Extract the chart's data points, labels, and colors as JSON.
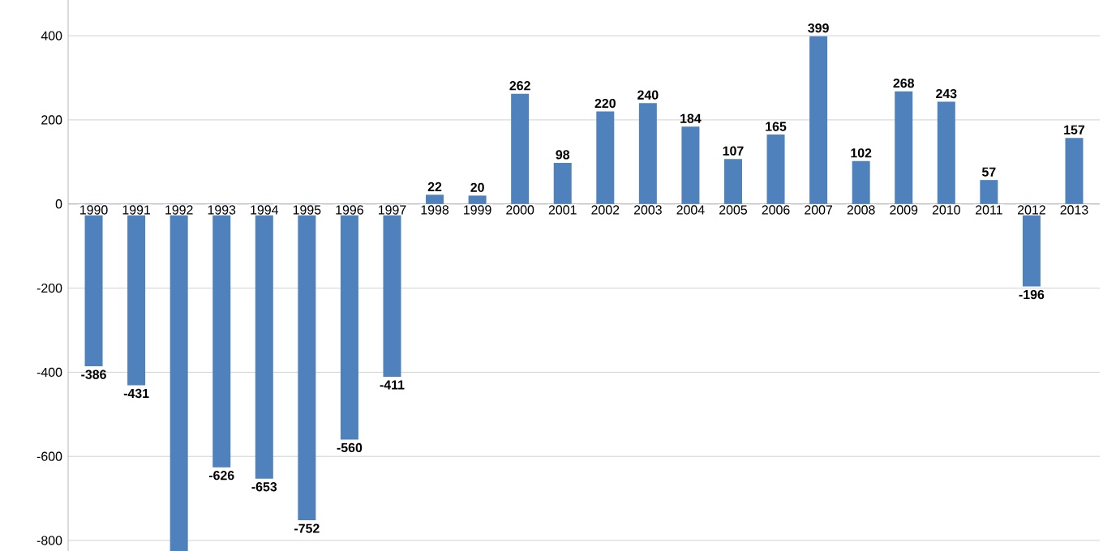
{
  "chart_data": {
    "type": "bar",
    "categories": [
      "1990",
      "1991",
      "1992",
      "1993",
      "1994",
      "1995",
      "1996",
      "1997",
      "1998",
      "1999",
      "2000",
      "2001",
      "2002",
      "2003",
      "2004",
      "2005",
      "2006",
      "2007",
      "2008",
      "2009",
      "2010",
      "2011",
      "2012",
      "2013"
    ],
    "values": [
      -386,
      -431,
      -825,
      -626,
      -653,
      -752,
      -560,
      -411,
      22,
      20,
      262,
      98,
      220,
      240,
      184,
      107,
      165,
      399,
      102,
      268,
      243,
      57,
      -196,
      157
    ],
    "value_labels": [
      "-386",
      "-431",
      null,
      "-626",
      "-653",
      "-752",
      "-560",
      "-411",
      "22",
      "20",
      "262",
      "98",
      "220",
      "240",
      "184",
      "107",
      "165",
      "399",
      "102",
      "268",
      "243",
      "57",
      "-196",
      "157"
    ],
    "color": "#4f81bd",
    "ylim": [
      -825,
      485
    ],
    "yticks": [
      -800,
      -600,
      -400,
      -200,
      0,
      200,
      400
    ],
    "grid": "y"
  }
}
